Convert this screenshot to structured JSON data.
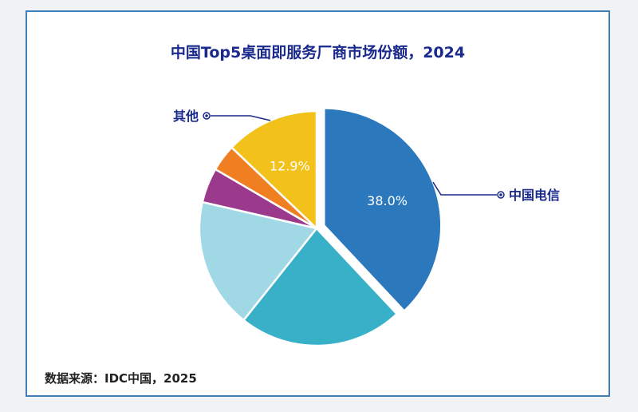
{
  "chart_data": {
    "type": "pie",
    "title": "中国Top5桌面即服务厂商市场份额，2024",
    "slices": [
      {
        "label": "中国电信",
        "value": 38.0,
        "display": "38.0%",
        "color": "#2b78bd",
        "exploded": true
      },
      {
        "label": "",
        "value": 22.7,
        "display": "",
        "color": "#37b0c8"
      },
      {
        "label": "",
        "value": 17.9,
        "display": "",
        "color": "#a0d8e6"
      },
      {
        "label": "",
        "value": 4.8,
        "display": "",
        "color": "#9b3a8c"
      },
      {
        "label": "",
        "value": 3.7,
        "display": "",
        "color": "#f07f22"
      },
      {
        "label": "其他",
        "value": 12.9,
        "display": "12.9%",
        "color": "#f2c21b"
      }
    ],
    "legend_color": "#1a2a8c"
  },
  "footer": {
    "source": "数据来源：IDC中国，2025"
  }
}
